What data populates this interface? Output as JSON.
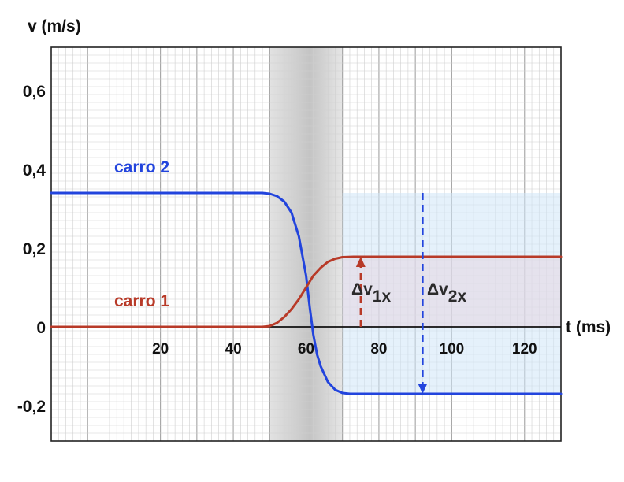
{
  "chart_data": {
    "type": "line",
    "ylabel": "v (m/s)",
    "xlabel": "t (ms)",
    "xlim": [
      -10,
      130
    ],
    "ylim": [
      -0.29,
      0.71
    ],
    "grid": true,
    "x_ticks": [
      {
        "value": 20,
        "label": "20"
      },
      {
        "value": 40,
        "label": "40"
      },
      {
        "value": 60,
        "label": "60"
      },
      {
        "value": 80,
        "label": "80"
      },
      {
        "value": 100,
        "label": "100"
      },
      {
        "value": 120,
        "label": "120"
      }
    ],
    "y_ticks": [
      {
        "value": 0.6,
        "label": "0,6"
      },
      {
        "value": 0.4,
        "label": "0,4"
      },
      {
        "value": 0.2,
        "label": "0,2"
      },
      {
        "value": 0,
        "label": "0"
      },
      {
        "value": -0.2,
        "label": "-0,2"
      }
    ],
    "collision_band": {
      "x_start": 50,
      "x_end": 70
    },
    "series": [
      {
        "name": "carro 2",
        "color": "#2244dd",
        "points": [
          [
            -10,
            0.34
          ],
          [
            48,
            0.34
          ],
          [
            50,
            0.338
          ],
          [
            52,
            0.332
          ],
          [
            54,
            0.318
          ],
          [
            56,
            0.29
          ],
          [
            58,
            0.23
          ],
          [
            60,
            0.13
          ],
          [
            61,
            0.05
          ],
          [
            62,
            -0.02
          ],
          [
            63,
            -0.07
          ],
          [
            64,
            -0.1
          ],
          [
            66,
            -0.14
          ],
          [
            68,
            -0.16
          ],
          [
            70,
            -0.168
          ],
          [
            72,
            -0.17
          ],
          [
            130,
            -0.17
          ]
        ]
      },
      {
        "name": "carro 1",
        "color": "#b83a28",
        "points": [
          [
            -10,
            0
          ],
          [
            48,
            0
          ],
          [
            50,
            0.002
          ],
          [
            52,
            0.01
          ],
          [
            54,
            0.025
          ],
          [
            56,
            0.045
          ],
          [
            58,
            0.07
          ],
          [
            60,
            0.1
          ],
          [
            62,
            0.13
          ],
          [
            64,
            0.15
          ],
          [
            66,
            0.165
          ],
          [
            68,
            0.173
          ],
          [
            70,
            0.177
          ],
          [
            73,
            0.178
          ],
          [
            130,
            0.178
          ]
        ]
      }
    ],
    "annotations": [
      {
        "label": "Δv",
        "sub": "1x",
        "x": 75,
        "from": 0,
        "to": 0.178,
        "color": "#b83a28"
      },
      {
        "label": "Δv",
        "sub": "2x",
        "x": 92,
        "from": 0.34,
        "to": -0.17,
        "color": "#2244dd"
      }
    ]
  }
}
